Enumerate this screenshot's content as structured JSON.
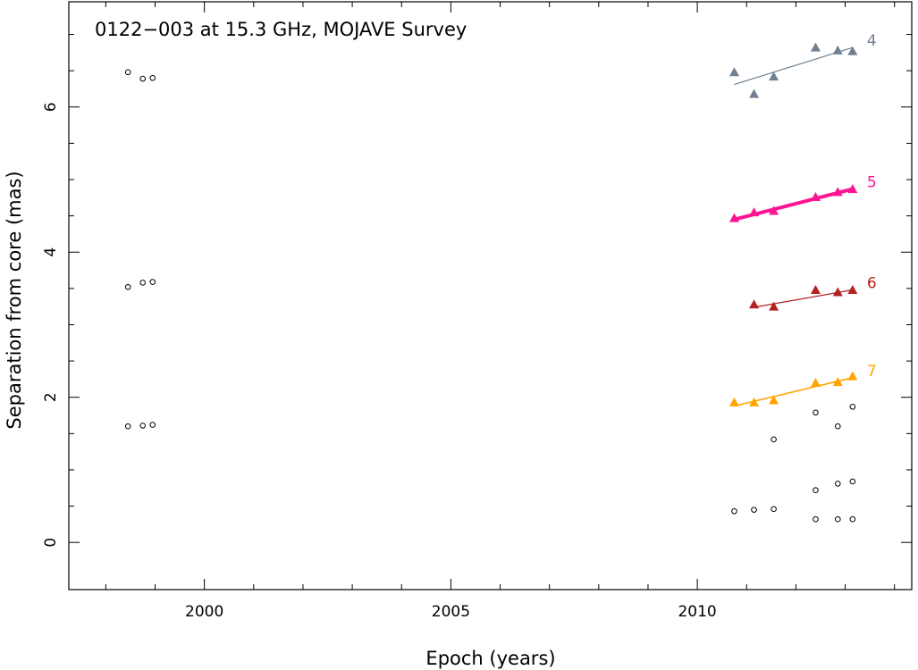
{
  "chart_data": {
    "type": "scatter",
    "title": "0122−003 at 15.3 GHz, MOJAVE Survey",
    "xlabel": "Epoch (years)",
    "ylabel": "Separation from core (mas)",
    "xlim": [
      1997.25,
      2014.35
    ],
    "ylim": [
      -0.65,
      7.45
    ],
    "xticks": [
      2000,
      2005,
      2010
    ],
    "yticks": [
      0,
      2,
      4,
      6
    ],
    "grid": false,
    "colors": {
      "4": "#708090",
      "5": "#ff1493",
      "6": "#b22222",
      "7": "#ffa500",
      "unassigned": "#000000"
    },
    "series": [
      {
        "name": "4",
        "color": "#708090",
        "marker": "triangle",
        "points": [
          [
            2010.75,
            6.48
          ],
          [
            2011.15,
            6.18
          ],
          [
            2011.55,
            6.42
          ],
          [
            2012.4,
            6.82
          ],
          [
            2012.85,
            6.78
          ],
          [
            2013.15,
            6.77
          ]
        ],
        "fit": [
          [
            2010.75,
            6.31
          ],
          [
            2013.15,
            6.82
          ]
        ],
        "fit_width": 1.2
      },
      {
        "name": "5",
        "color": "#ff1493",
        "marker": "triangle",
        "points": [
          [
            2010.75,
            4.47
          ],
          [
            2011.15,
            4.55
          ],
          [
            2011.55,
            4.57
          ],
          [
            2012.4,
            4.76
          ],
          [
            2012.85,
            4.83
          ],
          [
            2013.15,
            4.87
          ]
        ],
        "fit": [
          [
            2010.75,
            4.45
          ],
          [
            2013.15,
            4.87
          ]
        ],
        "fit_width": 4
      },
      {
        "name": "6",
        "color": "#b22222",
        "marker": "triangle",
        "points": [
          [
            2011.15,
            3.28
          ],
          [
            2011.55,
            3.25
          ],
          [
            2012.4,
            3.48
          ],
          [
            2012.85,
            3.45
          ],
          [
            2013.15,
            3.48
          ]
        ],
        "fit": [
          [
            2011.15,
            3.24
          ],
          [
            2013.15,
            3.48
          ]
        ],
        "fit_width": 1.2
      },
      {
        "name": "7",
        "color": "#ffa500",
        "marker": "triangle",
        "points": [
          [
            2010.75,
            1.93
          ],
          [
            2011.15,
            1.93
          ],
          [
            2011.55,
            1.96
          ],
          [
            2012.4,
            2.2
          ],
          [
            2012.85,
            2.21
          ],
          [
            2013.15,
            2.29
          ]
        ],
        "fit": [
          [
            2010.75,
            1.88
          ],
          [
            2013.15,
            2.27
          ]
        ],
        "fit_width": 1.6
      },
      {
        "name": "",
        "color": "#000000",
        "marker": "circle",
        "points": [
          [
            1998.45,
            6.48
          ],
          [
            1998.75,
            6.39
          ],
          [
            1998.95,
            6.4
          ],
          [
            1998.45,
            3.52
          ],
          [
            1998.75,
            3.58
          ],
          [
            1998.95,
            3.59
          ],
          [
            1998.45,
            1.6
          ],
          [
            1998.75,
            1.61
          ],
          [
            1998.95,
            1.62
          ],
          [
            2010.75,
            0.43
          ],
          [
            2011.15,
            0.45
          ],
          [
            2011.55,
            0.46
          ],
          [
            2012.4,
            0.32
          ],
          [
            2012.85,
            0.32
          ],
          [
            2013.15,
            0.32
          ],
          [
            2012.4,
            0.72
          ],
          [
            2012.85,
            0.81
          ],
          [
            2013.15,
            0.84
          ],
          [
            2011.55,
            1.42
          ],
          [
            2012.4,
            1.79
          ],
          [
            2012.85,
            1.6
          ],
          [
            2013.15,
            1.87
          ]
        ]
      }
    ]
  }
}
